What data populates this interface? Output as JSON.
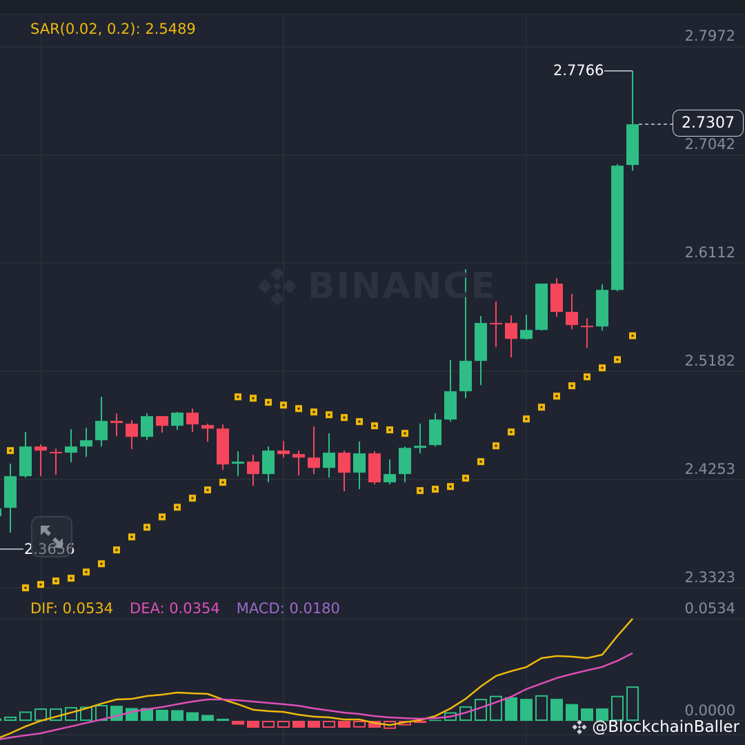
{
  "colors": {
    "up": "#2ebd85",
    "down": "#f6465d",
    "sar": "#f0b90b",
    "dif": "#f0b90b",
    "dea": "#e04fba",
    "grid": "#2b3139",
    "bg": "#1f2430"
  },
  "watermark": "BINANCE",
  "credit": "@BlockchainBaller",
  "indicators": {
    "sar_label": "SAR(0.02, 0.2): 2.5489",
    "dif_label": "DIF: 0.0534",
    "dea_label": "DEA: 0.0354",
    "macd_label": "MACD: 0.0180"
  },
  "price_axis": [
    "2.7972",
    "2.7042",
    "2.6112",
    "2.5182",
    "2.4253",
    "2.3323"
  ],
  "macd_axis": [
    "0.0534",
    "0.0000"
  ],
  "last_price": "2.7307",
  "high_marker": "2.7766",
  "low_marker": "2.3656",
  "chart_data": {
    "type": "candlestick",
    "ylim": [
      2.3323,
      2.7972
    ],
    "candles": [
      [
        2.3938,
        2.4104,
        2.3656,
        2.4004
      ],
      [
        2.401,
        2.4389,
        2.3796,
        2.4282
      ],
      [
        2.4282,
        2.4662,
        2.427,
        2.4537
      ],
      [
        2.4537,
        2.4555,
        2.4282,
        2.4502
      ],
      [
        2.449,
        2.4519,
        2.4294,
        2.4478
      ],
      [
        2.4484,
        2.4686,
        2.4401,
        2.4537
      ],
      [
        2.4537,
        2.4697,
        2.4448,
        2.4591
      ],
      [
        2.4591,
        2.4964,
        2.4537,
        2.4757
      ],
      [
        2.4757,
        2.4822,
        2.4626,
        2.4739
      ],
      [
        2.4733,
        2.4763,
        2.4514,
        2.462
      ],
      [
        2.462,
        2.4822,
        2.4591,
        2.4798
      ],
      [
        2.4798,
        2.4798,
        2.4656,
        2.4715
      ],
      [
        2.4715,
        2.4834,
        2.468,
        2.4828
      ],
      [
        2.4828,
        2.4863,
        2.4662,
        2.4727
      ],
      [
        2.4721,
        2.4733,
        2.4579,
        2.4691
      ],
      [
        2.4691,
        2.4727,
        2.4336,
        2.4383
      ],
      [
        2.4389,
        2.4496,
        2.4282,
        2.4407
      ],
      [
        2.4407,
        2.4466,
        2.4199,
        2.43
      ],
      [
        2.43,
        2.4537,
        2.4229,
        2.4502
      ],
      [
        2.4502,
        2.4585,
        2.4442,
        2.4472
      ],
      [
        2.4472,
        2.4502,
        2.4288,
        2.4442
      ],
      [
        2.4442,
        2.4709,
        2.43,
        2.4353
      ],
      [
        2.4353,
        2.465,
        2.427,
        2.4484
      ],
      [
        2.4484,
        2.4502,
        2.4152,
        2.4312
      ],
      [
        2.4312,
        2.4579,
        2.417,
        2.4478
      ],
      [
        2.4478,
        2.4496,
        2.4211,
        2.4229
      ],
      [
        2.4229,
        2.4425,
        2.4211,
        2.43
      ],
      [
        2.43,
        2.4537,
        2.4229,
        2.4525
      ],
      [
        2.4525,
        2.4733,
        2.4478,
        2.4543
      ],
      [
        2.4549,
        2.4822,
        2.4537,
        2.4769
      ],
      [
        2.4769,
        2.5279,
        2.4751,
        2.5012
      ],
      [
        2.5012,
        2.6061,
        2.4952,
        2.5273
      ],
      [
        2.5273,
        2.5658,
        2.5065,
        2.5599
      ],
      [
        2.5599,
        2.5783,
        2.5391,
        2.5587
      ],
      [
        2.5599,
        2.5664,
        2.5302,
        2.5462
      ],
      [
        2.5462,
        2.567,
        2.5456,
        2.5539
      ],
      [
        2.5539,
        2.5937,
        2.5534,
        2.5937
      ],
      [
        2.5937,
        2.5984,
        2.5652,
        2.5694
      ],
      [
        2.5694,
        2.5848,
        2.5545,
        2.5581
      ],
      [
        2.5575,
        2.564,
        2.5385,
        2.5563
      ],
      [
        2.5569,
        2.5931,
        2.5534,
        2.5883
      ],
      [
        2.5883,
        2.6963,
        2.5872,
        2.6951
      ],
      [
        2.6957,
        2.7766,
        2.6909,
        2.7307
      ]
    ],
    "sar": [
      null,
      2.4502,
      2.3322,
      2.3351,
      2.3381,
      2.3405,
      2.3458,
      2.3529,
      2.3648,
      2.376,
      2.3843,
      2.3932,
      2.4015,
      2.4093,
      2.4164,
      2.4229,
      2.4964,
      2.4952,
      2.4917,
      2.4893,
      2.4863,
      2.4834,
      2.481,
      2.4786,
      2.4751,
      2.4715,
      2.468,
      2.465,
      2.4158,
      2.417,
      2.4193,
      2.4265,
      2.4407,
      2.4543,
      2.4662,
      2.4774,
      2.4875,
      2.497,
      2.5059,
      2.5136,
      2.5213,
      2.5284,
      2.5489
    ],
    "macd": {
      "ylim": [
        0,
        0.0534
      ],
      "dif": [
        -0.0097,
        -0.0065,
        -0.0029,
        0.0,
        0.0022,
        0.0043,
        0.0065,
        0.009,
        0.0112,
        0.0115,
        0.013,
        0.0137,
        0.0148,
        0.0144,
        0.0141,
        0.0112,
        0.0087,
        0.0058,
        0.0051,
        0.0047,
        0.0032,
        0.0022,
        0.0018,
        0.0007,
        0.0007,
        -0.0011,
        -0.0022,
        -0.0007,
        0.0004,
        0.0025,
        0.0065,
        0.0115,
        0.018,
        0.0235,
        0.026,
        0.0281,
        0.0328,
        0.0339,
        0.0336,
        0.0328,
        0.0346,
        0.0444,
        0.0534
      ],
      "dea": [
        -0.0101,
        -0.0087,
        -0.0076,
        -0.0065,
        -0.0047,
        -0.0029,
        -0.0011,
        0.0007,
        0.0025,
        0.0047,
        0.0061,
        0.0072,
        0.0087,
        0.0101,
        0.0112,
        0.0112,
        0.0108,
        0.0101,
        0.0094,
        0.0087,
        0.0079,
        0.0065,
        0.0054,
        0.0043,
        0.0036,
        0.0025,
        0.0018,
        0.0014,
        0.0011,
        0.0014,
        0.0022,
        0.0043,
        0.0069,
        0.0097,
        0.0126,
        0.0166,
        0.0195,
        0.0224,
        0.0245,
        0.0264,
        0.0282,
        0.0314,
        0.0354
      ],
      "hist": [
        0.0013,
        0.0022,
        0.0049,
        0.0065,
        0.0065,
        0.0072,
        0.0074,
        0.0083,
        0.0079,
        0.0067,
        0.0067,
        0.0058,
        0.0056,
        0.0045,
        0.0031,
        0.0011,
        -0.002,
        -0.0036,
        -0.0036,
        -0.0036,
        -0.0036,
        -0.0036,
        -0.0036,
        -0.0036,
        -0.0035,
        -0.0036,
        -0.0042,
        -0.0024,
        -0.0011,
        0.0005,
        0.0045,
        0.0076,
        0.0115,
        0.0131,
        0.0123,
        0.0115,
        0.0134,
        0.0115,
        0.0088,
        0.0065,
        0.0065,
        0.0131,
        0.018
      ],
      "hist_hollow": [
        false,
        true,
        true,
        true,
        true,
        true,
        true,
        true,
        false,
        false,
        false,
        false,
        false,
        false,
        false,
        false,
        false,
        false,
        true,
        true,
        false,
        false,
        true,
        false,
        true,
        false,
        true,
        true,
        false,
        false,
        true,
        true,
        true,
        true,
        false,
        false,
        true,
        false,
        false,
        false,
        false,
        true,
        true
      ]
    }
  }
}
